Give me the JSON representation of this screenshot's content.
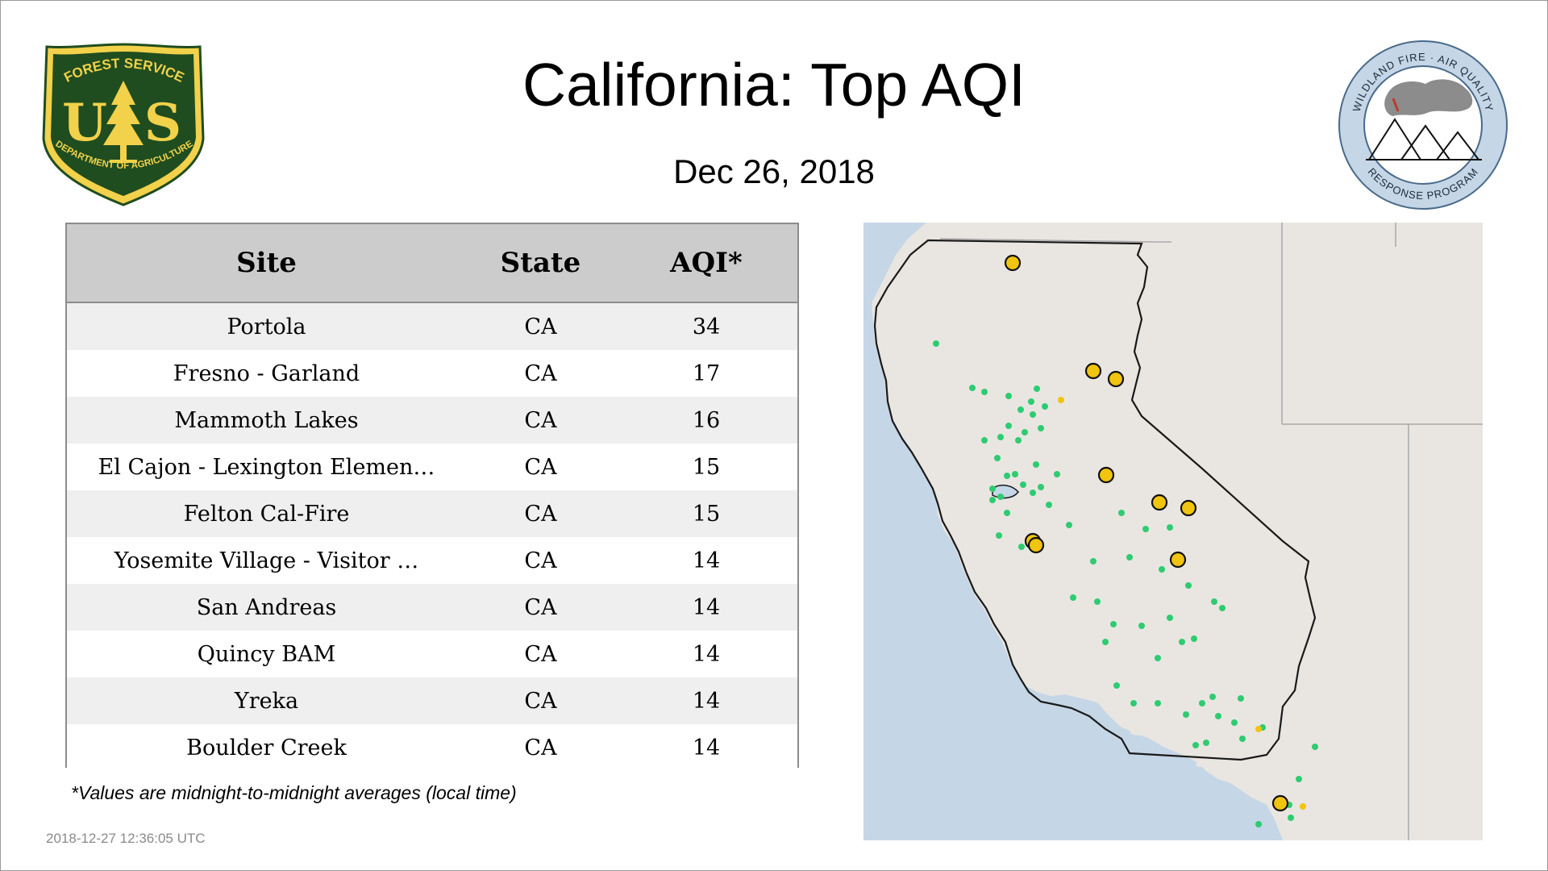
{
  "header": {
    "title": "California: Top AQI",
    "date": "Dec 26, 2018"
  },
  "logos": {
    "usfs_top": "FOREST SERVICE",
    "usfs_letters": "U S",
    "usfs_bottom": "DEPARTMENT OF AGRICULTURE",
    "program_top": "WILDLAND FIRE · AIR QUALITY",
    "program_bottom": "RESPONSE PROGRAM"
  },
  "table": {
    "columns": [
      "Site",
      "State",
      "AQI*"
    ],
    "rows": [
      {
        "site": "Portola",
        "state": "CA",
        "aqi": "34"
      },
      {
        "site": "Fresno - Garland",
        "state": "CA",
        "aqi": "17"
      },
      {
        "site": "Mammoth Lakes",
        "state": "CA",
        "aqi": "16"
      },
      {
        "site": "El Cajon - Lexington Elemen…",
        "state": "CA",
        "aqi": "15"
      },
      {
        "site": "Felton Cal-Fire",
        "state": "CA",
        "aqi": "15"
      },
      {
        "site": "Yosemite Village - Visitor …",
        "state": "CA",
        "aqi": "14"
      },
      {
        "site": "San Andreas",
        "state": "CA",
        "aqi": "14"
      },
      {
        "site": "Quincy BAM",
        "state": "CA",
        "aqi": "14"
      },
      {
        "site": "Yreka",
        "state": "CA",
        "aqi": "14"
      },
      {
        "site": "Boulder Creek",
        "state": "CA",
        "aqi": "14"
      }
    ]
  },
  "footnote": "*Values are midnight-to-midnight averages (local time)",
  "timestamp": "2018-12-27 12:36:05 UTC",
  "colors": {
    "header_bg": "#cccccc",
    "good": "#2ecc71",
    "moderate": "#f1c40f",
    "ocean": "#c5d6e6",
    "land": "#e9e6e2",
    "usfs_green": "#1f4d1f",
    "usfs_gold": "#f2d14b"
  }
}
